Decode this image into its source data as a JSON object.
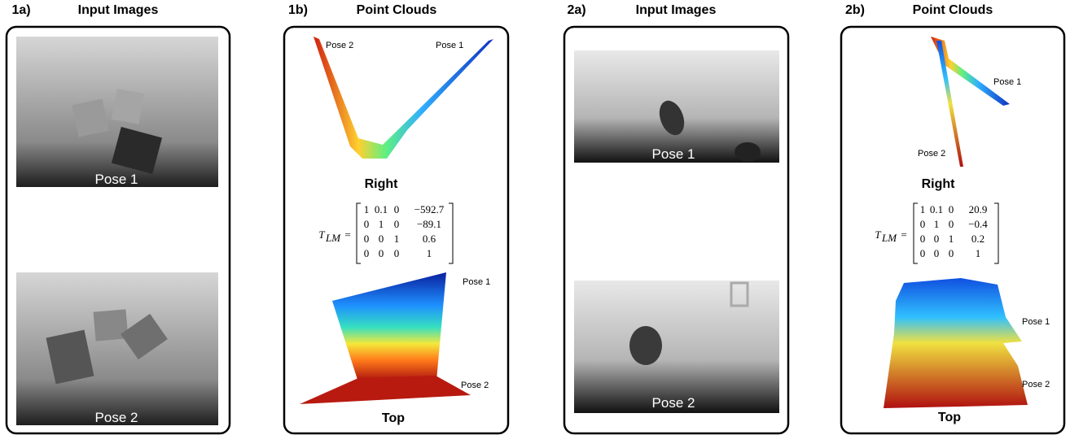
{
  "panels": [
    {
      "label": "1a)",
      "title": "Input Images",
      "captions": [
        "Pose 1",
        "Pose 2"
      ]
    },
    {
      "label": "1b)",
      "title": "Point Clouds",
      "views": [
        {
          "name": "Right",
          "pose_labels": [
            "Pose 2",
            "Pose 1"
          ]
        },
        {
          "name": "Top",
          "pose_labels": [
            "Pose 1",
            "Pose 2"
          ]
        }
      ],
      "matrix": {
        "symbol": "T",
        "subscript": "LM",
        "operator": "=",
        "rows": [
          [
            "1",
            "0.1",
            "0",
            "−592.7"
          ],
          [
            "0",
            "1",
            "0",
            "−89.1"
          ],
          [
            "0",
            "0",
            "1",
            "0.6"
          ],
          [
            "0",
            "0",
            "0",
            "1"
          ]
        ]
      }
    },
    {
      "label": "2a)",
      "title": "Input Images",
      "captions": [
        "Pose 1",
        "Pose 2"
      ]
    },
    {
      "label": "2b)",
      "title": "Point Clouds",
      "views": [
        {
          "name": "Right",
          "pose_labels": [
            "Pose 1",
            "Pose 2"
          ]
        },
        {
          "name": "Top",
          "pose_labels": [
            "Pose 1",
            "Pose 2"
          ]
        }
      ],
      "matrix": {
        "symbol": "T",
        "subscript": "LM",
        "operator": "=",
        "rows": [
          [
            "1",
            "0.1",
            "0",
            "20.9"
          ],
          [
            "0",
            "1",
            "0",
            "−0.4"
          ],
          [
            "0",
            "0",
            "1",
            "0.2"
          ],
          [
            "0",
            "0",
            "0",
            "1"
          ]
        ]
      }
    }
  ]
}
